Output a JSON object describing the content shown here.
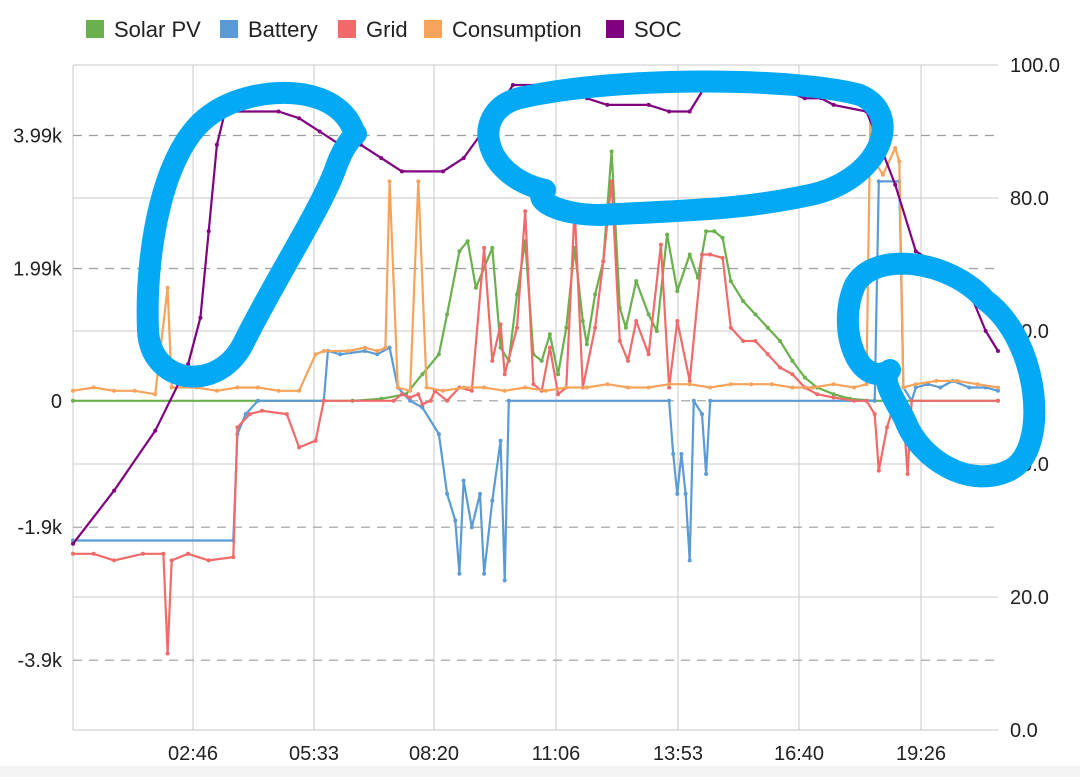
{
  "chart_data": {
    "type": "line",
    "legend": [
      {
        "name": "Solar PV",
        "color": "#6ab04c"
      },
      {
        "name": "Battery",
        "color": "#5b9bd5"
      },
      {
        "name": "Grid",
        "color": "#f06a6a"
      },
      {
        "name": "Consumption",
        "color": "#f7a35c"
      },
      {
        "name": "SOC",
        "color": "#800080"
      }
    ],
    "x_ticks": [
      "02:46",
      "05:33",
      "08:20",
      "11:06",
      "13:53",
      "16:40",
      "19:26"
    ],
    "x_range": [
      0.5,
      23.0
    ],
    "left_axis": {
      "ticks": [
        "3.99k",
        "1.99k",
        "0",
        "-1.9k",
        "-3.9k"
      ],
      "tick_values": [
        3990,
        1990,
        0,
        -1900,
        -3900
      ],
      "range": [
        -4950,
        5050
      ]
    },
    "right_axis": {
      "ticks": [
        "100.0",
        "80.0",
        "60.0",
        "40.0",
        "20.0",
        "0.0"
      ],
      "tick_values": [
        100,
        80,
        60,
        40,
        20,
        0
      ],
      "range": [
        0,
        100
      ]
    },
    "series": [
      {
        "name": "Solar PV",
        "color": "#6ab04c",
        "axis": "left",
        "points": [
          [
            0.5,
            0
          ],
          [
            7.3,
            0
          ],
          [
            8.0,
            30
          ],
          [
            8.6,
            100
          ],
          [
            9.0,
            400
          ],
          [
            9.4,
            700
          ],
          [
            9.6,
            1300
          ],
          [
            9.9,
            2250
          ],
          [
            10.1,
            2400
          ],
          [
            10.3,
            1700
          ],
          [
            10.5,
            2000
          ],
          [
            10.7,
            2300
          ],
          [
            10.9,
            800
          ],
          [
            11.1,
            600
          ],
          [
            11.3,
            1600
          ],
          [
            11.5,
            2400
          ],
          [
            11.7,
            700
          ],
          [
            11.9,
            600
          ],
          [
            12.1,
            1000
          ],
          [
            12.3,
            400
          ],
          [
            12.5,
            1100
          ],
          [
            12.7,
            2300
          ],
          [
            12.9,
            1200
          ],
          [
            13.0,
            850
          ],
          [
            13.2,
            1600
          ],
          [
            13.4,
            2100
          ],
          [
            13.6,
            3750
          ],
          [
            13.8,
            1400
          ],
          [
            13.95,
            1100
          ],
          [
            14.2,
            1800
          ],
          [
            14.5,
            1300
          ],
          [
            14.7,
            1050
          ],
          [
            14.95,
            2500
          ],
          [
            15.2,
            1650
          ],
          [
            15.5,
            2200
          ],
          [
            15.7,
            1850
          ],
          [
            15.9,
            2550
          ],
          [
            16.1,
            2550
          ],
          [
            16.3,
            2450
          ],
          [
            16.5,
            1800
          ],
          [
            16.8,
            1500
          ],
          [
            17.1,
            1300
          ],
          [
            17.4,
            1100
          ],
          [
            17.7,
            900
          ],
          [
            18.0,
            600
          ],
          [
            18.3,
            350
          ],
          [
            18.6,
            200
          ],
          [
            19.0,
            100
          ],
          [
            19.4,
            30
          ],
          [
            20.0,
            0
          ],
          [
            23.0,
            0
          ]
        ]
      },
      {
        "name": "Battery",
        "color": "#5b9bd5",
        "axis": "left",
        "points": [
          [
            0.5,
            -2100
          ],
          [
            4.4,
            -2100
          ],
          [
            4.5,
            -500
          ],
          [
            4.7,
            -200
          ],
          [
            5.0,
            0
          ],
          [
            6.6,
            0
          ],
          [
            6.7,
            750
          ],
          [
            7.0,
            700
          ],
          [
            7.6,
            750
          ],
          [
            7.9,
            700
          ],
          [
            8.2,
            800
          ],
          [
            8.4,
            200
          ],
          [
            8.7,
            0
          ],
          [
            9.0,
            -100
          ],
          [
            9.4,
            -500
          ],
          [
            9.6,
            -1400
          ],
          [
            9.8,
            -1800
          ],
          [
            9.9,
            -2600
          ],
          [
            10.0,
            -1200
          ],
          [
            10.2,
            -1900
          ],
          [
            10.4,
            -1400
          ],
          [
            10.5,
            -2600
          ],
          [
            10.7,
            -1500
          ],
          [
            10.9,
            -600
          ],
          [
            11.0,
            -2700
          ],
          [
            11.1,
            0
          ],
          [
            15.0,
            0
          ],
          [
            15.1,
            -800
          ],
          [
            15.2,
            -1400
          ],
          [
            15.3,
            -800
          ],
          [
            15.4,
            -1400
          ],
          [
            15.5,
            -2400
          ],
          [
            15.6,
            0
          ],
          [
            15.8,
            -200
          ],
          [
            15.9,
            -1100
          ],
          [
            16.0,
            0
          ],
          [
            20.0,
            0
          ],
          [
            20.1,
            3300
          ],
          [
            20.6,
            3300
          ],
          [
            20.7,
            200
          ],
          [
            20.9,
            0
          ],
          [
            21.0,
            200
          ],
          [
            21.3,
            250
          ],
          [
            21.6,
            200
          ],
          [
            21.9,
            300
          ],
          [
            22.3,
            200
          ],
          [
            22.7,
            200
          ],
          [
            23.0,
            150
          ]
        ]
      },
      {
        "name": "Grid",
        "color": "#f06a6a",
        "axis": "left",
        "points": [
          [
            0.5,
            -2300
          ],
          [
            1.0,
            -2300
          ],
          [
            1.5,
            -2400
          ],
          [
            2.2,
            -2300
          ],
          [
            2.7,
            -2300
          ],
          [
            2.8,
            -3800
          ],
          [
            2.9,
            -2400
          ],
          [
            3.3,
            -2300
          ],
          [
            3.8,
            -2400
          ],
          [
            4.4,
            -2350
          ],
          [
            4.5,
            -400
          ],
          [
            4.8,
            -200
          ],
          [
            5.1,
            -150
          ],
          [
            5.7,
            -200
          ],
          [
            6.0,
            -700
          ],
          [
            6.4,
            -600
          ],
          [
            6.6,
            0
          ],
          [
            8.3,
            0
          ],
          [
            8.5,
            100
          ],
          [
            8.7,
            50
          ],
          [
            8.9,
            100
          ],
          [
            9.0,
            -50
          ],
          [
            9.2,
            0
          ],
          [
            9.3,
            150
          ],
          [
            9.6,
            0
          ],
          [
            9.9,
            200
          ],
          [
            10.2,
            150
          ],
          [
            10.5,
            2300
          ],
          [
            10.7,
            600
          ],
          [
            10.9,
            1150
          ],
          [
            11.0,
            400
          ],
          [
            11.3,
            1100
          ],
          [
            11.5,
            2850
          ],
          [
            11.7,
            250
          ],
          [
            11.9,
            150
          ],
          [
            12.1,
            800
          ],
          [
            12.3,
            100
          ],
          [
            12.5,
            200
          ],
          [
            12.7,
            2900
          ],
          [
            12.9,
            200
          ],
          [
            13.2,
            1100
          ],
          [
            13.4,
            2100
          ],
          [
            13.6,
            3300
          ],
          [
            13.8,
            900
          ],
          [
            14.0,
            600
          ],
          [
            14.2,
            1200
          ],
          [
            14.5,
            700
          ],
          [
            14.8,
            2350
          ],
          [
            15.0,
            200
          ],
          [
            15.2,
            1200
          ],
          [
            15.5,
            300
          ],
          [
            15.8,
            2200
          ],
          [
            16.0,
            2200
          ],
          [
            16.3,
            2150
          ],
          [
            16.5,
            1100
          ],
          [
            16.8,
            900
          ],
          [
            17.1,
            900
          ],
          [
            17.4,
            700
          ],
          [
            17.7,
            500
          ],
          [
            18.0,
            400
          ],
          [
            18.3,
            200
          ],
          [
            18.6,
            100
          ],
          [
            19.0,
            50
          ],
          [
            19.5,
            0
          ],
          [
            19.8,
            0
          ],
          [
            20.0,
            -200
          ],
          [
            20.1,
            -1050
          ],
          [
            20.3,
            -400
          ],
          [
            20.5,
            0
          ],
          [
            20.7,
            -200
          ],
          [
            20.8,
            -1100
          ],
          [
            20.9,
            0
          ],
          [
            23.0,
            0
          ]
        ]
      },
      {
        "name": "Consumption",
        "color": "#f7a35c",
        "axis": "left",
        "points": [
          [
            0.5,
            150
          ],
          [
            1.0,
            200
          ],
          [
            1.5,
            150
          ],
          [
            2.0,
            150
          ],
          [
            2.5,
            100
          ],
          [
            2.8,
            1700
          ],
          [
            2.9,
            200
          ],
          [
            3.5,
            200
          ],
          [
            4.0,
            150
          ],
          [
            4.5,
            200
          ],
          [
            5.0,
            200
          ],
          [
            5.5,
            150
          ],
          [
            6.0,
            150
          ],
          [
            6.4,
            700
          ],
          [
            6.6,
            750
          ],
          [
            7.2,
            750
          ],
          [
            7.6,
            800
          ],
          [
            7.9,
            750
          ],
          [
            8.1,
            800
          ],
          [
            8.2,
            3300
          ],
          [
            8.4,
            200
          ],
          [
            8.7,
            150
          ],
          [
            8.9,
            3300
          ],
          [
            9.1,
            200
          ],
          [
            9.5,
            150
          ],
          [
            10.0,
            200
          ],
          [
            10.5,
            200
          ],
          [
            11.0,
            150
          ],
          [
            11.5,
            200
          ],
          [
            12.0,
            150
          ],
          [
            12.5,
            200
          ],
          [
            13.0,
            200
          ],
          [
            13.5,
            250
          ],
          [
            14.0,
            200
          ],
          [
            14.5,
            200
          ],
          [
            15.0,
            250
          ],
          [
            15.5,
            250
          ],
          [
            16.0,
            200
          ],
          [
            16.5,
            250
          ],
          [
            17.0,
            250
          ],
          [
            17.5,
            250
          ],
          [
            18.0,
            200
          ],
          [
            18.5,
            200
          ],
          [
            19.0,
            250
          ],
          [
            19.5,
            200
          ],
          [
            19.8,
            250
          ],
          [
            19.9,
            4500
          ],
          [
            20.0,
            3600
          ],
          [
            20.2,
            3400
          ],
          [
            20.5,
            3800
          ],
          [
            20.6,
            3600
          ],
          [
            20.7,
            200
          ],
          [
            21.0,
            250
          ],
          [
            21.5,
            300
          ],
          [
            22.0,
            300
          ],
          [
            22.5,
            250
          ],
          [
            23.0,
            200
          ]
        ]
      },
      {
        "name": "SOC",
        "color": "#800080",
        "axis": "right",
        "points": [
          [
            0.5,
            28
          ],
          [
            1.5,
            36
          ],
          [
            2.5,
            45
          ],
          [
            3.3,
            55
          ],
          [
            3.6,
            62
          ],
          [
            3.8,
            75
          ],
          [
            4.0,
            88
          ],
          [
            4.2,
            93
          ],
          [
            5.5,
            93
          ],
          [
            6.0,
            92
          ],
          [
            6.5,
            90
          ],
          [
            7.0,
            88
          ],
          [
            7.5,
            88
          ],
          [
            8.0,
            86
          ],
          [
            8.5,
            84
          ],
          [
            9.5,
            84
          ],
          [
            10.0,
            86
          ],
          [
            10.7,
            92
          ],
          [
            11.2,
            97
          ],
          [
            12.5,
            97
          ],
          [
            13.0,
            95
          ],
          [
            13.5,
            94
          ],
          [
            14.5,
            94
          ],
          [
            15.0,
            93
          ],
          [
            15.5,
            93
          ],
          [
            15.9,
            97
          ],
          [
            17.5,
            97
          ],
          [
            18.3,
            95
          ],
          [
            18.7,
            95
          ],
          [
            19.0,
            94
          ],
          [
            19.8,
            93
          ],
          [
            20.0,
            90
          ],
          [
            20.5,
            82
          ],
          [
            21.0,
            72
          ],
          [
            21.5,
            70
          ],
          [
            22.0,
            68
          ],
          [
            22.3,
            66
          ],
          [
            22.7,
            60
          ],
          [
            23.0,
            57
          ]
        ]
      }
    ],
    "annotations": [
      {
        "type": "freehand-outline",
        "color": "#03a9f4"
      },
      {
        "type": "freehand-outline",
        "color": "#03a9f4"
      },
      {
        "type": "freehand-outline",
        "color": "#03a9f4"
      }
    ]
  }
}
